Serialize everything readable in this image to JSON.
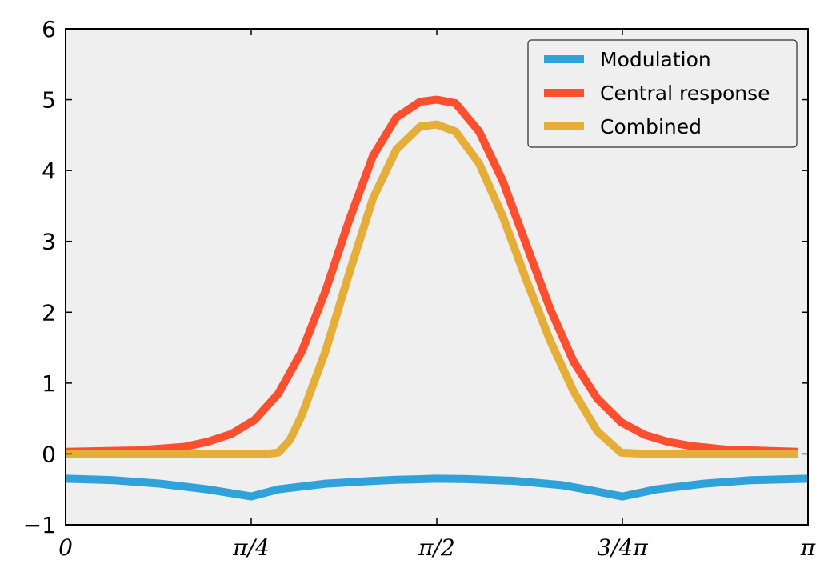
{
  "chart_data": {
    "type": "line",
    "title": "",
    "xlabel": "",
    "ylabel": "",
    "xlim": [
      0,
      3.14159
    ],
    "ylim": [
      -1,
      6
    ],
    "grid": false,
    "legend_position": "top-right",
    "background": "#efefef",
    "x_ticks": [
      {
        "value": 0,
        "label": "0"
      },
      {
        "value": 0.7854,
        "label": "π/4"
      },
      {
        "value": 1.5708,
        "label": "π/2"
      },
      {
        "value": 2.3562,
        "label": "3/4π"
      },
      {
        "value": 3.14159,
        "label": "π"
      }
    ],
    "y_ticks": [
      {
        "value": -1,
        "label": "−1"
      },
      {
        "value": 0,
        "label": "0"
      },
      {
        "value": 1,
        "label": "1"
      },
      {
        "value": 2,
        "label": "2"
      },
      {
        "value": 3,
        "label": "3"
      },
      {
        "value": 4,
        "label": "4"
      },
      {
        "value": 5,
        "label": "5"
      },
      {
        "value": 6,
        "label": "6"
      }
    ],
    "series": [
      {
        "name": "Modulation",
        "color": "#30a2da",
        "x": [
          0,
          0.2,
          0.4,
          0.6,
          0.7854,
          0.9,
          1.1,
          1.3,
          1.4,
          1.5708,
          1.7,
          1.9,
          2.1,
          2.2,
          2.3562,
          2.5,
          2.7,
          2.9,
          3.14159
        ],
        "y": [
          -0.35,
          -0.37,
          -0.42,
          -0.5,
          -0.6,
          -0.5,
          -0.42,
          -0.38,
          -0.365,
          -0.35,
          -0.355,
          -0.38,
          -0.44,
          -0.5,
          -0.6,
          -0.5,
          -0.42,
          -0.37,
          -0.35
        ]
      },
      {
        "name": "Central response",
        "color": "#fc4f30",
        "x": [
          0,
          0.3,
          0.5,
          0.6,
          0.7,
          0.8,
          0.9,
          1.0,
          1.1,
          1.2,
          1.3,
          1.4,
          1.5,
          1.5708,
          1.65,
          1.75,
          1.85,
          1.95,
          2.05,
          2.15,
          2.25,
          2.35,
          2.45,
          2.55,
          2.65,
          2.8,
          3.1
        ],
        "y": [
          0.03,
          0.05,
          0.1,
          0.17,
          0.28,
          0.48,
          0.85,
          1.45,
          2.3,
          3.3,
          4.2,
          4.75,
          4.97,
          5.0,
          4.95,
          4.55,
          3.85,
          2.95,
          2.05,
          1.3,
          0.78,
          0.45,
          0.27,
          0.17,
          0.11,
          0.06,
          0.03
        ]
      },
      {
        "name": "Combined",
        "color": "#e5ae38",
        "x": [
          0,
          0.85,
          0.9,
          0.95,
          1.0,
          1.1,
          1.2,
          1.3,
          1.4,
          1.5,
          1.5708,
          1.65,
          1.75,
          1.85,
          1.95,
          2.05,
          2.15,
          2.25,
          2.35,
          2.45,
          3.1
        ],
        "y": [
          0,
          0,
          0.02,
          0.2,
          0.55,
          1.45,
          2.55,
          3.6,
          4.3,
          4.62,
          4.65,
          4.55,
          4.1,
          3.35,
          2.45,
          1.6,
          0.88,
          0.32,
          0.02,
          0,
          0
        ]
      }
    ]
  }
}
